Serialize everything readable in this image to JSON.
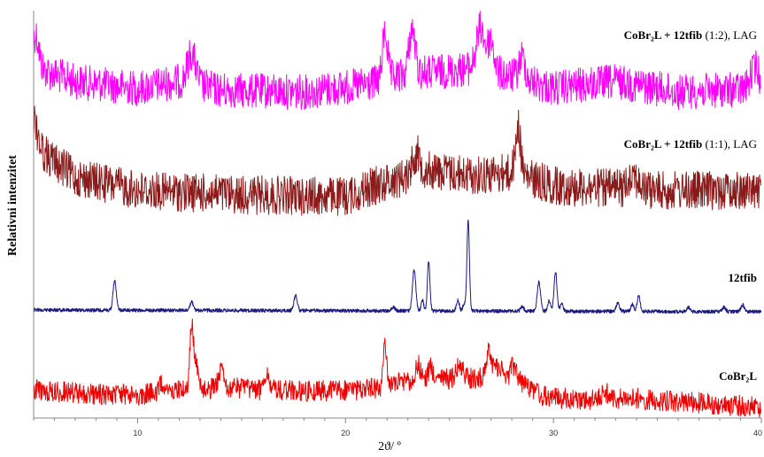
{
  "chart_data": {
    "type": "line",
    "xlabel": "2ϑ/ º",
    "ylabel": "Relativni intenzitet",
    "xlim": [
      5,
      40
    ],
    "x_ticks": [
      "10",
      "20",
      "30",
      "40"
    ],
    "x_tick_values": [
      10,
      20,
      30,
      40
    ],
    "grid": false,
    "legend": "labels placed at the right end of each trace",
    "series": [
      {
        "name": "CoBr2L + 12tfib (1:2), LAG",
        "label_bold": "CoBr₂L + 12tfib",
        "label_normal": " (1:2), LAG",
        "color": "#ff00ff",
        "style": "noisy",
        "baseline": [
          [
            5,
            76
          ],
          [
            7,
            92
          ],
          [
            10,
            100
          ],
          [
            12,
            92
          ],
          [
            14,
            102
          ],
          [
            18,
            104
          ],
          [
            21,
            96
          ],
          [
            23,
            84
          ],
          [
            26,
            78
          ],
          [
            28,
            86
          ],
          [
            30,
            100
          ],
          [
            33,
            92
          ],
          [
            36,
            104
          ],
          [
            40,
            100
          ]
        ],
        "noise": 20,
        "peaks": [
          [
            5.1,
            38,
            0.15
          ],
          [
            12.6,
            35,
            0.2
          ],
          [
            21.9,
            55,
            0.12
          ],
          [
            23.2,
            50,
            0.15
          ],
          [
            26.5,
            48,
            0.2
          ],
          [
            27.0,
            35,
            0.15
          ],
          [
            28.5,
            25,
            0.15
          ],
          [
            39.7,
            25,
            0.2
          ]
        ]
      },
      {
        "name": "CoBr2L + 12tfib (1:1), LAG",
        "label_bold": "CoBr₂L + 12tfib",
        "label_normal": " (1:1), LAG",
        "color": "#8b1a1a",
        "style": "noisy",
        "baseline": [
          [
            5,
            165
          ],
          [
            7,
            200
          ],
          [
            10,
            215
          ],
          [
            15,
            220
          ],
          [
            20,
            222
          ],
          [
            22,
            205
          ],
          [
            24,
            192
          ],
          [
            26,
            198
          ],
          [
            28,
            195
          ],
          [
            30,
            210
          ],
          [
            35,
            215
          ],
          [
            40,
            215
          ]
        ],
        "noise": 22,
        "peaks": [
          [
            5.0,
            30,
            0.2
          ],
          [
            23.4,
            22,
            0.2
          ],
          [
            28.3,
            55,
            0.12
          ],
          [
            33.8,
            20,
            0.2
          ]
        ]
      },
      {
        "name": "12tfib",
        "label_bold": "12tfib",
        "label_normal": "",
        "color": "#1a1a80",
        "style": "sharp",
        "baseline": [
          [
            5,
            350
          ],
          [
            40,
            352
          ]
        ],
        "noise": 2,
        "peaks": [
          [
            8.9,
            33,
            0.08
          ],
          [
            12.6,
            10,
            0.07
          ],
          [
            17.6,
            17,
            0.08
          ],
          [
            22.3,
            4,
            0.08
          ],
          [
            23.3,
            47,
            0.08
          ],
          [
            23.7,
            12,
            0.06
          ],
          [
            24.0,
            57,
            0.06
          ],
          [
            25.4,
            12,
            0.07
          ],
          [
            25.7,
            8,
            0.06
          ],
          [
            25.9,
            102,
            0.06
          ],
          [
            28.5,
            5,
            0.08
          ],
          [
            29.3,
            33,
            0.08
          ],
          [
            29.8,
            12,
            0.07
          ],
          [
            30.1,
            45,
            0.07
          ],
          [
            30.4,
            8,
            0.07
          ],
          [
            33.1,
            9,
            0.08
          ],
          [
            33.8,
            8,
            0.07
          ],
          [
            34.1,
            18,
            0.07
          ],
          [
            36.5,
            5,
            0.08
          ],
          [
            38.2,
            5,
            0.08
          ],
          [
            39.1,
            8,
            0.08
          ]
        ]
      },
      {
        "name": "CoBr2L",
        "label_bold": "CoBr₂L",
        "label_normal": "",
        "color": "#ee0000",
        "style": "noisy",
        "baseline": [
          [
            5,
            440
          ],
          [
            8,
            445
          ],
          [
            10,
            446
          ],
          [
            12,
            440
          ],
          [
            14,
            438
          ],
          [
            18,
            442
          ],
          [
            21,
            440
          ],
          [
            23,
            430
          ],
          [
            25,
            428
          ],
          [
            27,
            426
          ],
          [
            28.5,
            432
          ],
          [
            29.5,
            448
          ],
          [
            32,
            452
          ],
          [
            34,
            450
          ],
          [
            40,
            460
          ]
        ],
        "noise": 12,
        "peaks": [
          [
            11.2,
            10,
            0.15
          ],
          [
            12.6,
            70,
            0.09
          ],
          [
            12.8,
            30,
            0.08
          ],
          [
            14.0,
            20,
            0.12
          ],
          [
            16.2,
            22,
            0.08
          ],
          [
            21.9,
            50,
            0.07
          ],
          [
            23.5,
            18,
            0.12
          ],
          [
            24.1,
            15,
            0.12
          ],
          [
            25.5,
            15,
            0.15
          ],
          [
            26.9,
            28,
            0.15
          ],
          [
            27.4,
            15,
            0.15
          ],
          [
            28.1,
            18,
            0.15
          ],
          [
            32.5,
            8,
            0.2
          ]
        ]
      }
    ]
  }
}
